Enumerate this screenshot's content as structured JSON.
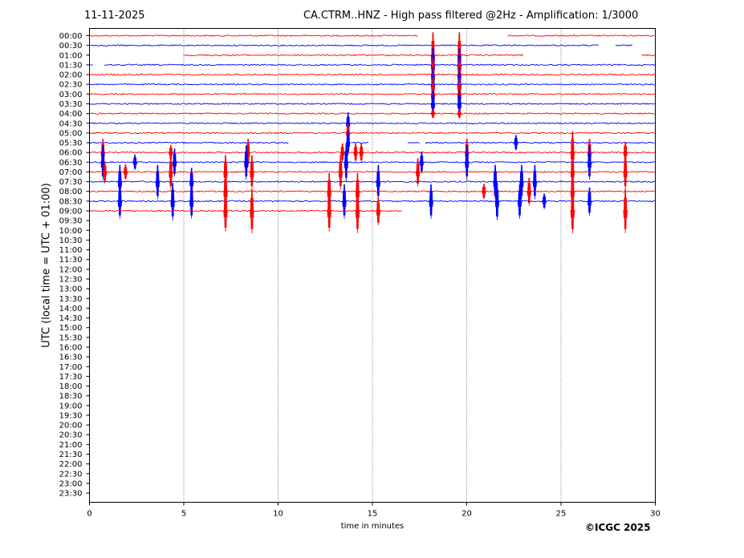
{
  "header": {
    "date": "11-11-2025",
    "title": "CA.CTRM..HNZ - High pass filtered @2Hz - Amplification: 1/3000"
  },
  "footer": {
    "copyright": "©ICGC 2025"
  },
  "chart_data": {
    "type": "line",
    "xlabel": "time in minutes",
    "ylabel": "UTC (local time = UTC + 01:00)",
    "xlim": [
      0,
      30
    ],
    "x_ticks": [
      0,
      5,
      10,
      15,
      20,
      25,
      30
    ],
    "grid": "vertical dotted lines at x ticks",
    "y_tick_labels": [
      "00:00",
      "00:30",
      "01:00",
      "01:30",
      "02:00",
      "02:30",
      "03:00",
      "03:30",
      "04:00",
      "04:30",
      "05:00",
      "05:30",
      "06:00",
      "06:30",
      "07:00",
      "07:30",
      "08:00",
      "08:30",
      "09:00",
      "09:30",
      "10:00",
      "10:30",
      "11:00",
      "11:30",
      "12:00",
      "12:30",
      "13:00",
      "13:30",
      "14:00",
      "14:30",
      "15:00",
      "15:30",
      "16:00",
      "16:30",
      "17:00",
      "17:30",
      "18:00",
      "18:30",
      "19:00",
      "19:30",
      "20:00",
      "20:30",
      "21:00",
      "21:30",
      "22:00",
      "22:30",
      "23:00",
      "23:30"
    ],
    "trace_colors": [
      "#ff0000",
      "#0000ff"
    ],
    "traces": [
      {
        "label": "00:00",
        "segments": [
          [
            0,
            17.4
          ],
          [
            22.2,
            30
          ]
        ],
        "spikes": []
      },
      {
        "label": "00:30",
        "segments": [
          [
            0,
            27.0
          ],
          [
            27.9,
            28.8
          ]
        ],
        "spikes": []
      },
      {
        "label": "01:00",
        "segments": [
          [
            5.0,
            23.0
          ],
          [
            29.3,
            30
          ]
        ],
        "spikes": [
          {
            "x": 18.2,
            "amp": 30
          },
          {
            "x": 19.6,
            "amp": 30
          }
        ]
      },
      {
        "label": "01:30",
        "segments": [
          [
            0,
            0.2
          ],
          [
            0.8,
            30
          ]
        ],
        "spikes": [
          {
            "x": 18.2,
            "amp": 22
          },
          {
            "x": 19.6,
            "amp": 22
          }
        ]
      },
      {
        "label": "02:00",
        "segments": [
          [
            0,
            30
          ]
        ],
        "spikes": [
          {
            "x": 18.2,
            "amp": 22
          },
          {
            "x": 19.6,
            "amp": 22
          }
        ]
      },
      {
        "label": "02:30",
        "segments": [
          [
            0,
            30
          ]
        ],
        "spikes": [
          {
            "x": 18.2,
            "amp": 22
          },
          {
            "x": 19.6,
            "amp": 22
          }
        ]
      },
      {
        "label": "03:00",
        "segments": [
          [
            0,
            30
          ]
        ],
        "spikes": [
          {
            "x": 18.2,
            "amp": 22
          },
          {
            "x": 19.6,
            "amp": 22
          }
        ]
      },
      {
        "label": "03:30",
        "segments": [
          [
            0,
            30
          ]
        ],
        "spikes": [
          {
            "x": 18.2,
            "amp": 18
          },
          {
            "x": 19.6,
            "amp": 18
          }
        ]
      },
      {
        "label": "04:00",
        "segments": [
          [
            0,
            30
          ]
        ],
        "spikes": [
          {
            "x": 18.2,
            "amp": 6
          },
          {
            "x": 19.6,
            "amp": 6
          }
        ]
      },
      {
        "label": "04:30",
        "segments": [
          [
            0,
            30
          ]
        ],
        "spikes": [
          {
            "x": 13.7,
            "amp": 14
          }
        ]
      },
      {
        "label": "05:00",
        "segments": [
          [
            0,
            30
          ]
        ],
        "spikes": [
          {
            "x": 13.7,
            "amp": 12
          }
        ]
      },
      {
        "label": "05:30",
        "segments": [
          [
            0,
            10.6
          ],
          [
            13.9,
            14.8
          ],
          [
            16.9,
            17.5
          ],
          [
            17.8,
            30
          ]
        ],
        "spikes": [
          {
            "x": 13.7,
            "amp": 16
          },
          {
            "x": 22.6,
            "amp": 10
          }
        ]
      },
      {
        "label": "06:00",
        "segments": [
          [
            0,
            30
          ]
        ],
        "spikes": [
          {
            "x": 0.7,
            "amp": 18
          },
          {
            "x": 4.3,
            "amp": 10
          },
          {
            "x": 8.4,
            "amp": 18
          },
          {
            "x": 13.4,
            "amp": 12
          },
          {
            "x": 14.1,
            "amp": 12
          },
          {
            "x": 14.4,
            "amp": 12
          },
          {
            "x": 20.0,
            "amp": 18
          },
          {
            "x": 25.6,
            "amp": 28
          },
          {
            "x": 26.5,
            "amp": 18
          },
          {
            "x": 28.4,
            "amp": 14
          }
        ]
      },
      {
        "label": "06:30",
        "segments": [
          [
            0,
            30
          ]
        ],
        "spikes": [
          {
            "x": 0.7,
            "amp": 22
          },
          {
            "x": 2.4,
            "amp": 10
          },
          {
            "x": 4.5,
            "amp": 18
          },
          {
            "x": 8.3,
            "amp": 22
          },
          {
            "x": 13.6,
            "amp": 24
          },
          {
            "x": 17.6,
            "amp": 14
          },
          {
            "x": 20.0,
            "amp": 22
          },
          {
            "x": 26.5,
            "amp": 22
          }
        ]
      },
      {
        "label": "07:00",
        "segments": [
          [
            0,
            30
          ]
        ],
        "spikes": [
          {
            "x": 0.8,
            "amp": 14
          },
          {
            "x": 1.9,
            "amp": 10
          },
          {
            "x": 4.3,
            "amp": 22
          },
          {
            "x": 7.2,
            "amp": 22
          },
          {
            "x": 8.6,
            "amp": 22
          },
          {
            "x": 13.3,
            "amp": 22
          },
          {
            "x": 17.4,
            "amp": 18
          },
          {
            "x": 25.6,
            "amp": 22
          },
          {
            "x": 28.4,
            "amp": 22
          }
        ]
      },
      {
        "label": "07:30",
        "segments": [
          [
            0,
            30
          ]
        ],
        "spikes": [
          {
            "x": 1.6,
            "amp": 22
          },
          {
            "x": 3.6,
            "amp": 22
          },
          {
            "x": 5.4,
            "amp": 18
          },
          {
            "x": 15.3,
            "amp": 22
          },
          {
            "x": 21.5,
            "amp": 22
          },
          {
            "x": 22.9,
            "amp": 22
          },
          {
            "x": 23.6,
            "amp": 22
          }
        ]
      },
      {
        "label": "08:00",
        "segments": [
          [
            0,
            30
          ]
        ],
        "spikes": [
          {
            "x": 7.2,
            "amp": 24
          },
          {
            "x": 12.7,
            "amp": 24
          },
          {
            "x": 14.2,
            "amp": 24
          },
          {
            "x": 20.9,
            "amp": 10
          },
          {
            "x": 23.3,
            "amp": 18
          },
          {
            "x": 25.6,
            "amp": 24
          }
        ]
      },
      {
        "label": "08:30",
        "segments": [
          [
            0,
            30
          ]
        ],
        "spikes": [
          {
            "x": 1.6,
            "amp": 22
          },
          {
            "x": 4.4,
            "amp": 24
          },
          {
            "x": 5.4,
            "amp": 22
          },
          {
            "x": 13.5,
            "amp": 22
          },
          {
            "x": 18.1,
            "amp": 22
          },
          {
            "x": 21.6,
            "amp": 24
          },
          {
            "x": 22.8,
            "amp": 22
          },
          {
            "x": 24.1,
            "amp": 10
          },
          {
            "x": 26.5,
            "amp": 18
          }
        ]
      },
      {
        "label": "09:00",
        "segments": [
          [
            0,
            16.6
          ]
        ],
        "spikes": [
          {
            "x": 7.2,
            "amp": 26
          },
          {
            "x": 8.6,
            "amp": 28
          },
          {
            "x": 12.7,
            "amp": 26
          },
          {
            "x": 14.2,
            "amp": 28
          },
          {
            "x": 15.3,
            "amp": 18
          },
          {
            "x": 25.6,
            "amp": 28
          },
          {
            "x": 28.4,
            "amp": 28
          }
        ]
      }
    ]
  }
}
